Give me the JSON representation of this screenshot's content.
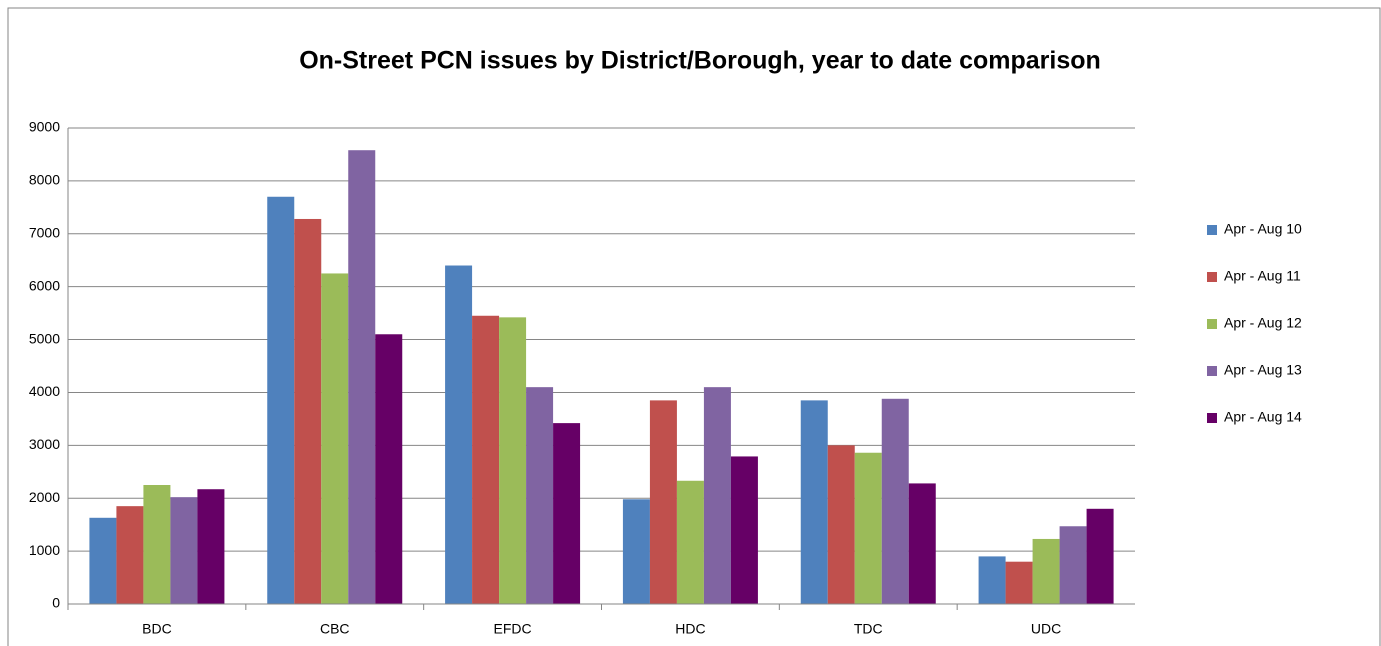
{
  "chart_data": {
    "type": "bar",
    "title": "On-Street PCN issues by District/Borough, year to date comparison",
    "categories": [
      "BDC",
      "CBC",
      "EFDC",
      "HDC",
      "TDC",
      "UDC"
    ],
    "series": [
      {
        "name": "Apr - Aug 10",
        "color": "#4f81bd",
        "values": [
          1630,
          7700,
          6400,
          1980,
          3850,
          900
        ]
      },
      {
        "name": "Apr - Aug 11",
        "color": "#c0504d",
        "values": [
          1850,
          7280,
          5450,
          3850,
          3000,
          800
        ]
      },
      {
        "name": "Apr - Aug 12",
        "color": "#9bbb59",
        "values": [
          2250,
          6250,
          5420,
          2330,
          2860,
          1230
        ]
      },
      {
        "name": "Apr - Aug 13",
        "color": "#8064a2",
        "values": [
          2020,
          8580,
          4100,
          4100,
          3880,
          1470
        ]
      },
      {
        "name": "Apr - Aug 14",
        "color": "#660066",
        "values": [
          2170,
          5100,
          3420,
          2790,
          2280,
          1800
        ]
      }
    ],
    "ylim": [
      0,
      9000
    ],
    "yticks": [
      0,
      1000,
      2000,
      3000,
      4000,
      5000,
      6000,
      7000,
      8000,
      9000
    ],
    "grid": true,
    "legend": "right"
  }
}
